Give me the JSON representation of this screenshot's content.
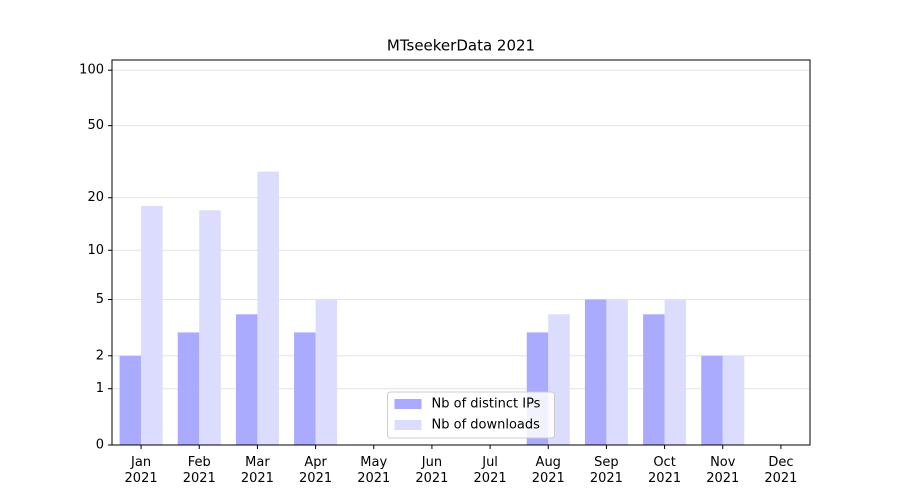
{
  "chart_data": {
    "type": "bar",
    "title": "MTseekerData 2021",
    "categories": [
      "Jan\n2021",
      "Feb\n2021",
      "Mar\n2021",
      "Apr\n2021",
      "May\n2021",
      "Jun\n2021",
      "Jul\n2021",
      "Aug\n2021",
      "Sep\n2021",
      "Oct\n2021",
      "Nov\n2021",
      "Dec\n2021"
    ],
    "series": [
      {
        "name": "Nb of distinct IPs",
        "color": "#aaaaff",
        "values": [
          2,
          3,
          4,
          3,
          0,
          0,
          0,
          3,
          5,
          4,
          2,
          0
        ]
      },
      {
        "name": "Nb of downloads",
        "color": "#dcdcff",
        "values": [
          18,
          17,
          28,
          5,
          0,
          0,
          0,
          4,
          5,
          5,
          2,
          0
        ]
      }
    ],
    "yscale": "log1p",
    "ylim": [
      0,
      113.5
    ],
    "yticks": [
      0,
      1,
      2,
      5,
      10,
      20,
      50,
      100
    ],
    "grid": true,
    "legend": "lower center"
  }
}
